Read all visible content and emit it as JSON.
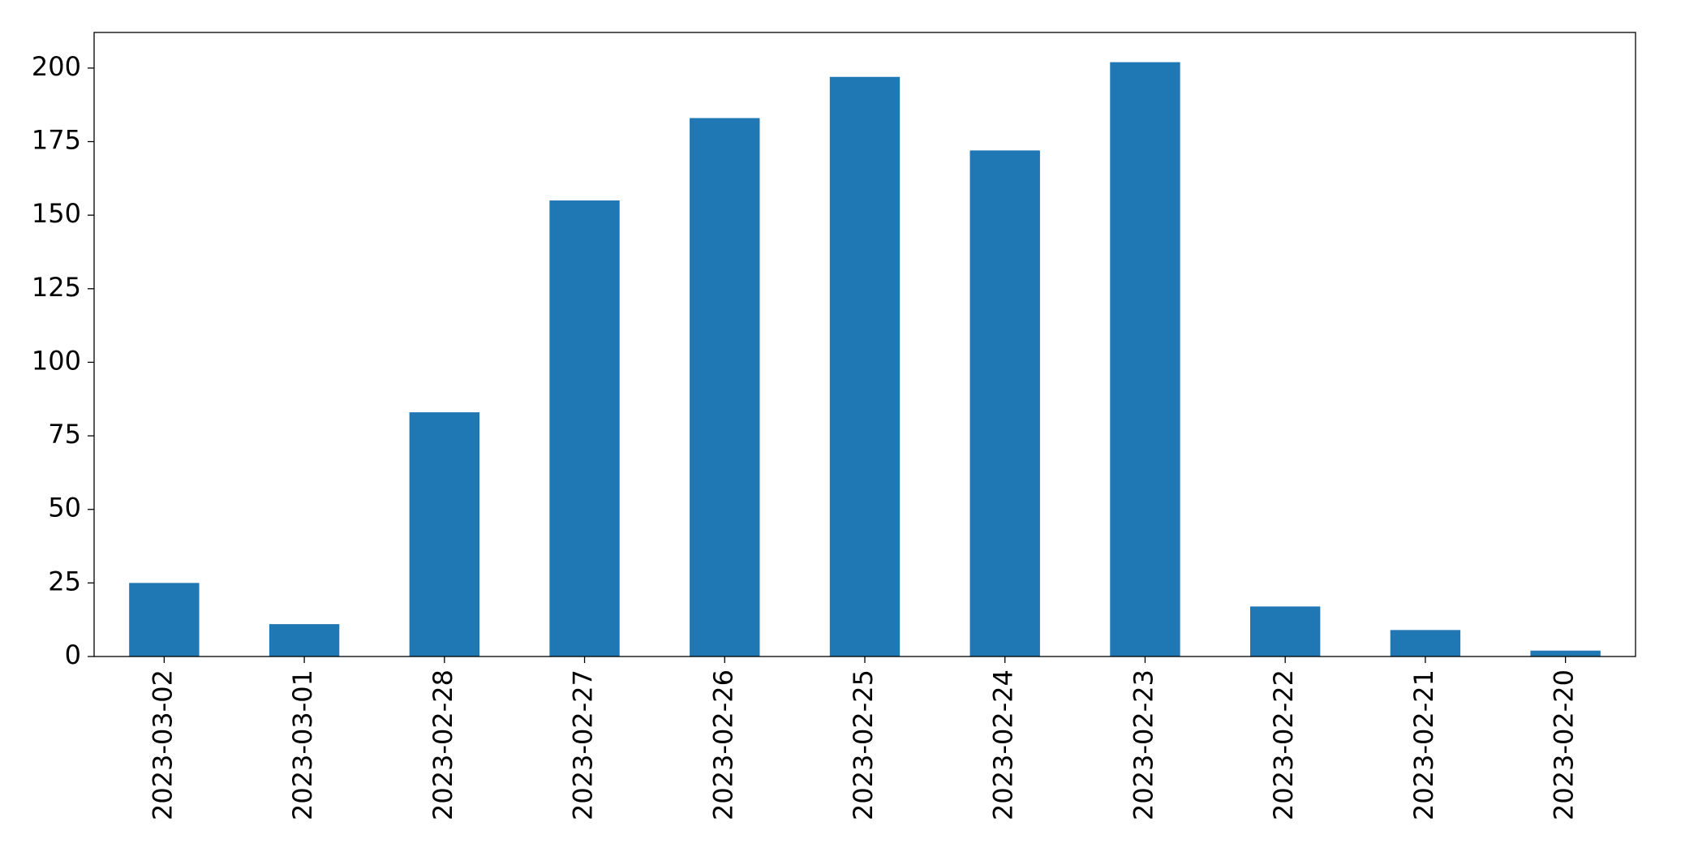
{
  "chart_data": {
    "type": "bar",
    "categories": [
      "2023-03-02",
      "2023-03-01",
      "2023-02-28",
      "2023-02-27",
      "2023-02-26",
      "2023-02-25",
      "2023-02-24",
      "2023-02-23",
      "2023-02-22",
      "2023-02-21",
      "2023-02-20"
    ],
    "values": [
      25,
      11,
      83,
      155,
      183,
      197,
      172,
      202,
      17,
      9,
      2
    ],
    "color": "#1f77b4",
    "ylim": [
      0,
      212.1
    ],
    "yticks": [
      0,
      25,
      50,
      75,
      100,
      125,
      150,
      175,
      200
    ],
    "grid": false
  }
}
